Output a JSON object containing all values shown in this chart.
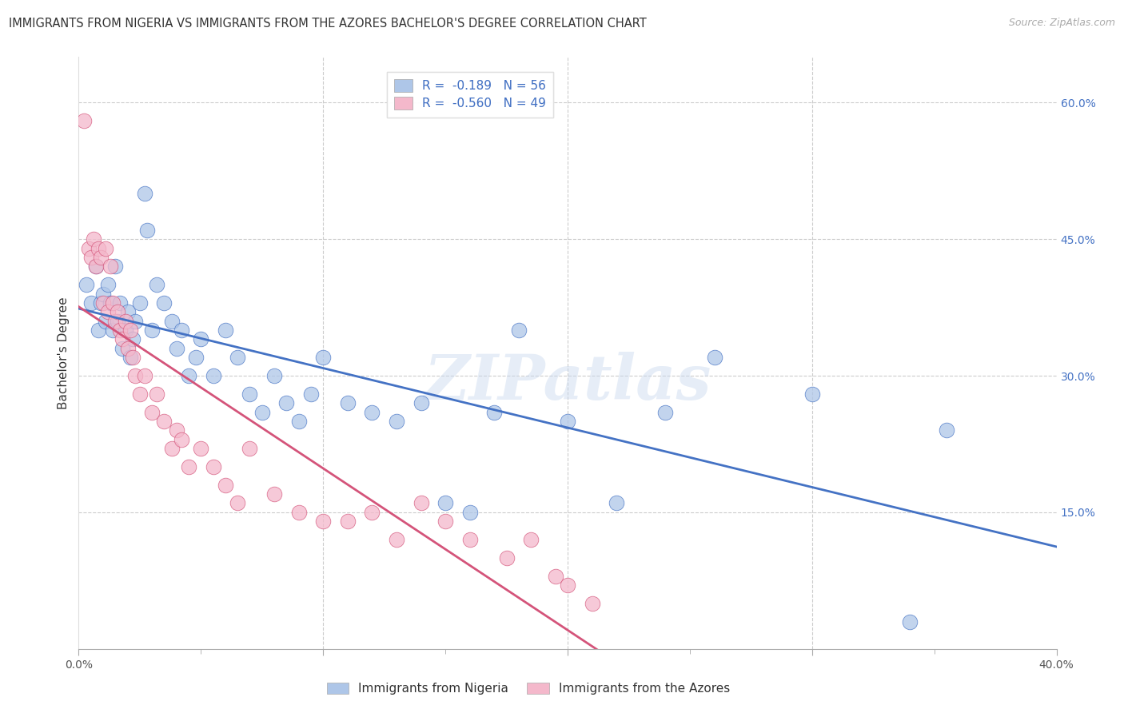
{
  "title": "IMMIGRANTS FROM NIGERIA VS IMMIGRANTS FROM THE AZORES BACHELOR'S DEGREE CORRELATION CHART",
  "source": "Source: ZipAtlas.com",
  "ylabel": "Bachelor's Degree",
  "x_min": 0.0,
  "x_max": 0.4,
  "y_min": 0.0,
  "y_max": 0.65,
  "legend_label_nigeria": "Immigrants from Nigeria",
  "legend_label_azores": "Immigrants from the Azores",
  "R_nigeria": "-0.189",
  "N_nigeria": "56",
  "R_azores": "-0.560",
  "N_azores": "49",
  "color_nigeria": "#aec6e8",
  "color_azores": "#f4b8cb",
  "color_line_nigeria": "#4472c4",
  "color_line_azores": "#d4547a",
  "watermark": "ZIPatlas",
  "nigeria_x": [
    0.003,
    0.005,
    0.007,
    0.008,
    0.009,
    0.01,
    0.011,
    0.012,
    0.013,
    0.014,
    0.015,
    0.016,
    0.017,
    0.018,
    0.019,
    0.02,
    0.021,
    0.022,
    0.023,
    0.025,
    0.027,
    0.028,
    0.03,
    0.032,
    0.035,
    0.038,
    0.04,
    0.042,
    0.045,
    0.048,
    0.05,
    0.055,
    0.06,
    0.065,
    0.07,
    0.075,
    0.08,
    0.085,
    0.09,
    0.095,
    0.1,
    0.11,
    0.12,
    0.13,
    0.14,
    0.15,
    0.16,
    0.17,
    0.18,
    0.2,
    0.22,
    0.24,
    0.26,
    0.3,
    0.34,
    0.355
  ],
  "nigeria_y": [
    0.4,
    0.38,
    0.42,
    0.35,
    0.38,
    0.39,
    0.36,
    0.4,
    0.38,
    0.35,
    0.42,
    0.36,
    0.38,
    0.33,
    0.35,
    0.37,
    0.32,
    0.34,
    0.36,
    0.38,
    0.5,
    0.46,
    0.35,
    0.4,
    0.38,
    0.36,
    0.33,
    0.35,
    0.3,
    0.32,
    0.34,
    0.3,
    0.35,
    0.32,
    0.28,
    0.26,
    0.3,
    0.27,
    0.25,
    0.28,
    0.32,
    0.27,
    0.26,
    0.25,
    0.27,
    0.16,
    0.15,
    0.26,
    0.35,
    0.25,
    0.16,
    0.26,
    0.32,
    0.28,
    0.03,
    0.24
  ],
  "azores_x": [
    0.002,
    0.004,
    0.005,
    0.006,
    0.007,
    0.008,
    0.009,
    0.01,
    0.011,
    0.012,
    0.013,
    0.014,
    0.015,
    0.016,
    0.017,
    0.018,
    0.019,
    0.02,
    0.021,
    0.022,
    0.023,
    0.025,
    0.027,
    0.03,
    0.032,
    0.035,
    0.038,
    0.04,
    0.042,
    0.045,
    0.05,
    0.055,
    0.06,
    0.065,
    0.07,
    0.08,
    0.09,
    0.1,
    0.11,
    0.12,
    0.13,
    0.14,
    0.15,
    0.16,
    0.175,
    0.185,
    0.195,
    0.2,
    0.21
  ],
  "azores_y": [
    0.58,
    0.44,
    0.43,
    0.45,
    0.42,
    0.44,
    0.43,
    0.38,
    0.44,
    0.37,
    0.42,
    0.38,
    0.36,
    0.37,
    0.35,
    0.34,
    0.36,
    0.33,
    0.35,
    0.32,
    0.3,
    0.28,
    0.3,
    0.26,
    0.28,
    0.25,
    0.22,
    0.24,
    0.23,
    0.2,
    0.22,
    0.2,
    0.18,
    0.16,
    0.22,
    0.17,
    0.15,
    0.14,
    0.14,
    0.15,
    0.12,
    0.16,
    0.14,
    0.12,
    0.1,
    0.12,
    0.08,
    0.07,
    0.05
  ]
}
